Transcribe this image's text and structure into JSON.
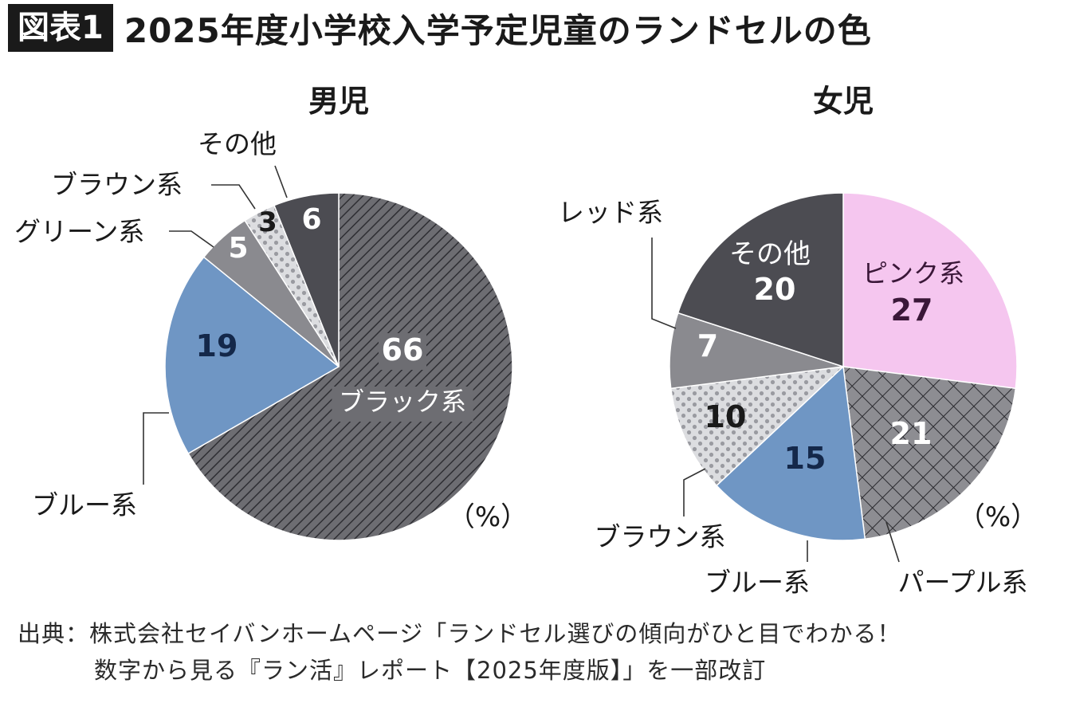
{
  "header": {
    "badge": "図表1",
    "title": "2025年度小学校入学予定児童のランドセルの色"
  },
  "unit": "（%）",
  "chart_data": [
    {
      "type": "pie",
      "title": "男児",
      "unit": "（%）",
      "slices": [
        {
          "label": "ブラック系",
          "value": 66,
          "color": "#6d6d72",
          "pattern": "diagonal-lines"
        },
        {
          "label": "ブルー系",
          "value": 19,
          "color": "#6f96c4",
          "pattern": "solid"
        },
        {
          "label": "グリーン系",
          "value": 5,
          "color": "#8a8a8f",
          "pattern": "solid"
        },
        {
          "label": "ブラウン系",
          "value": 3,
          "color": "#d9dadd",
          "pattern": "dots"
        },
        {
          "label": "その他",
          "value": 6,
          "color": "#4c4c52",
          "pattern": "solid"
        }
      ]
    },
    {
      "type": "pie",
      "title": "女児",
      "unit": "（%）",
      "slices": [
        {
          "label": "ピンク系",
          "value": 27,
          "color": "#f5c6ef",
          "pattern": "solid"
        },
        {
          "label": "パープル系",
          "value": 21,
          "color": "#8d8d92",
          "pattern": "crosshatch"
        },
        {
          "label": "ブルー系",
          "value": 15,
          "color": "#6f96c4",
          "pattern": "solid"
        },
        {
          "label": "ブラウン系",
          "value": 10,
          "color": "#d9dadd",
          "pattern": "dots"
        },
        {
          "label": "レッド系",
          "value": 7,
          "color": "#8a8a8f",
          "pattern": "solid"
        },
        {
          "label": "その他",
          "value": 20,
          "color": "#4c4c52",
          "pattern": "solid"
        }
      ]
    }
  ],
  "source": {
    "line1": "出典：株式会社セイバンホームページ「ランドセル選びの傾向がひと目でわかる！",
    "line2": "数字から見る『ラン活』レポート【2025年度版】」を一部改訂"
  }
}
